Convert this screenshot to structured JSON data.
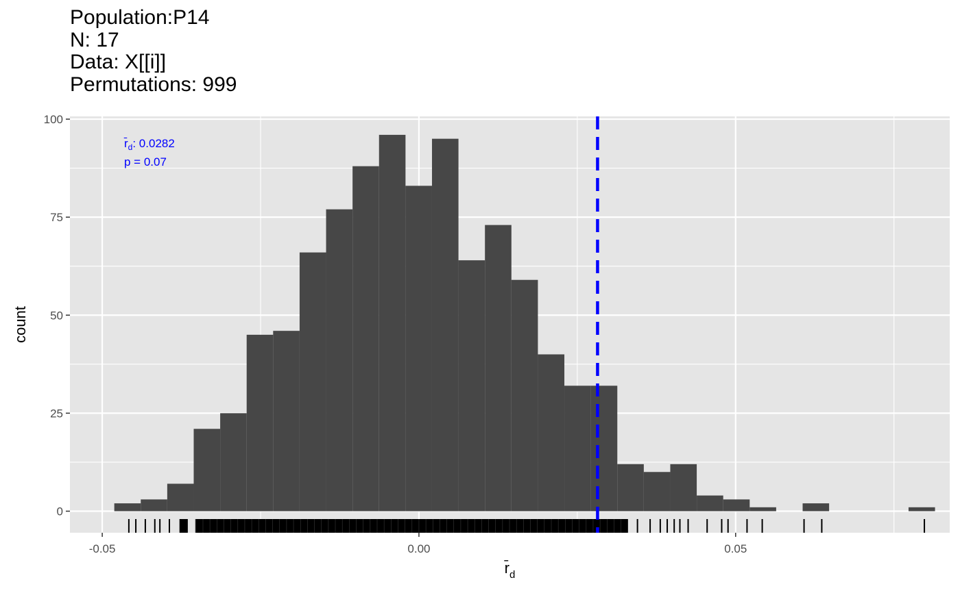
{
  "chart_data": {
    "type": "bar",
    "title_lines": [
      "Population:P14",
      "N: 17",
      "Data: X[[i]]",
      "Permutations: 999"
    ],
    "xlabel": "r̄",
    "xlabel_sub": "d",
    "ylabel": "count",
    "xlim": [
      -0.0551,
      0.0838
    ],
    "ylim": [
      -5.5,
      100.7
    ],
    "x_ticks": [
      {
        "value": -0.05,
        "label": "-0.05"
      },
      {
        "value": 0.0,
        "label": "0.00"
      },
      {
        "value": 0.05,
        "label": "0.05"
      }
    ],
    "y_ticks": [
      {
        "value": 0,
        "label": "0"
      },
      {
        "value": 25,
        "label": "25"
      },
      {
        "value": 50,
        "label": "50"
      },
      {
        "value": 75,
        "label": "75"
      },
      {
        "value": 100,
        "label": "100"
      }
    ],
    "bins": {
      "start": -0.0481,
      "width": 0.00418,
      "counts": [
        2,
        3,
        7,
        21,
        25,
        45,
        46,
        66,
        77,
        88,
        96,
        83,
        95,
        64,
        73,
        59,
        40,
        32,
        32,
        12,
        10,
        12,
        4,
        3,
        1,
        0,
        2,
        0,
        0,
        0,
        1
      ]
    },
    "observed": {
      "value": 0.0282,
      "label_text": "r̄",
      "label_sub": "d",
      "label_value": ": 0.0282",
      "p_text": "p = 0.07",
      "color": "#0000ff"
    },
    "rug": {
      "singles": [
        -0.0458,
        -0.0447,
        -0.0432,
        -0.0417,
        -0.0409,
        -0.0394,
        -0.0369,
        -0.0366,
        0.0345,
        0.0365,
        0.0381,
        0.0392,
        0.0403,
        0.0412,
        0.0425,
        0.0455,
        0.0478,
        0.0488,
        0.0518,
        0.0542,
        0.0608,
        0.0636,
        0.0798
      ],
      "dense_ranges": [
        [
          -0.0377,
          -0.0368
        ],
        [
          -0.0352,
          0.0329
        ]
      ]
    },
    "colors": {
      "panel": "#e5e5e5",
      "grid": "#ffffff",
      "bar": "#474747",
      "rug": "#000000"
    },
    "grid": true
  }
}
